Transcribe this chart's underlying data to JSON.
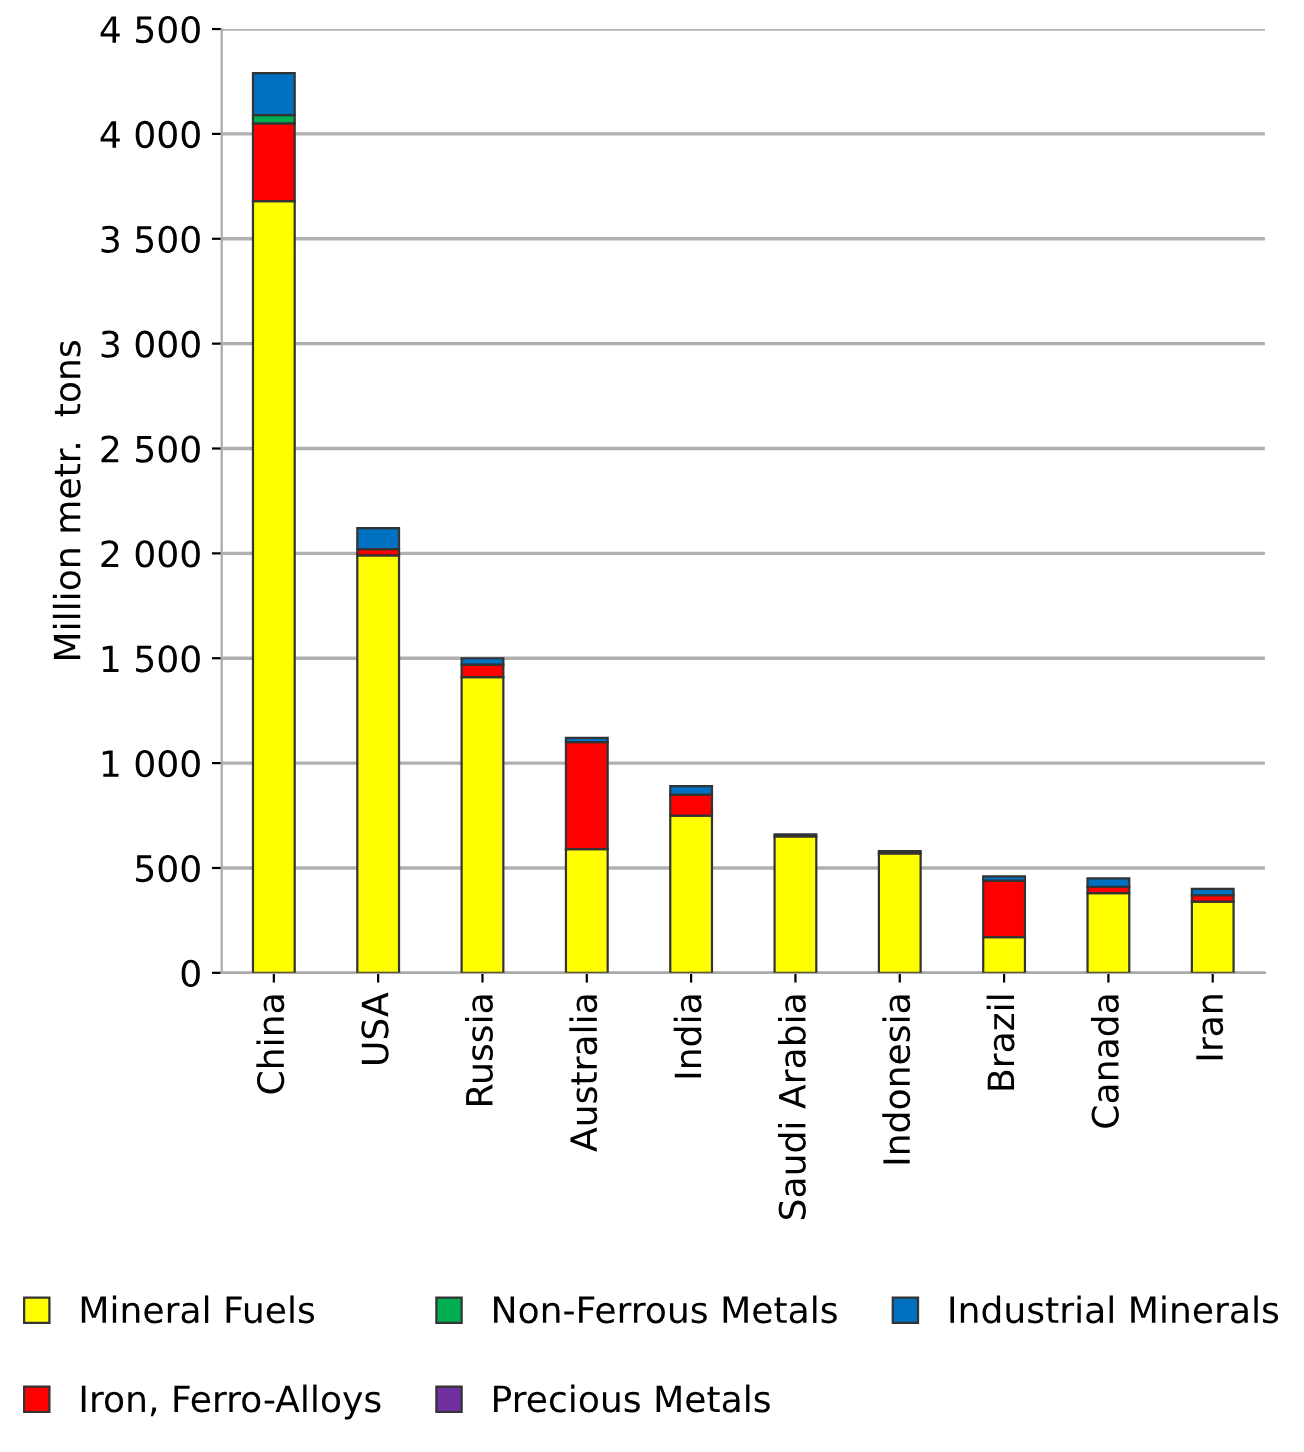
{
  "chart_data": {
    "type": "bar",
    "stacked": true,
    "ylabel": "Million metr.  tons",
    "categories": [
      "China",
      "USA",
      "Russia",
      "Australia",
      "India",
      "Saudi Arabia",
      "Indonesia",
      "Brazil",
      "Canada",
      "Iran"
    ],
    "series": [
      {
        "name": "Mineral Fuels",
        "color": "#ffff00",
        "values": [
          3680,
          1990,
          1410,
          590,
          750,
          650,
          570,
          170,
          380,
          340
        ]
      },
      {
        "name": "Iron, Ferro-Alloys",
        "color": "#ff0000",
        "values": [
          370,
          30,
          60,
          510,
          100,
          null,
          null,
          270,
          30,
          30
        ]
      },
      {
        "name": "Non-Ferrous Metals",
        "color": "#00b050",
        "values": [
          40,
          null,
          null,
          null,
          null,
          null,
          null,
          null,
          null,
          null
        ]
      },
      {
        "name": "Precious Metals",
        "color": "#7030a0",
        "values": [
          null,
          null,
          null,
          null,
          null,
          null,
          null,
          null,
          null,
          null
        ]
      },
      {
        "name": "Industrial Minerals",
        "color": "#0070c0",
        "values": [
          200,
          100,
          30,
          20,
          40,
          10,
          10,
          20,
          40,
          30
        ]
      }
    ],
    "ylim": [
      0,
      4500
    ],
    "yticks": [
      0,
      500,
      {
        "value": 1000,
        "label": "1 000"
      },
      {
        "value": 1500,
        "label": "1 500"
      },
      {
        "value": 2000,
        "label": "2 000"
      },
      {
        "value": 2500,
        "label": "2 500"
      },
      {
        "value": 3000,
        "label": "3 000"
      },
      {
        "value": 3500,
        "label": "3 500"
      },
      {
        "value": 4000,
        "label": "4 000"
      },
      {
        "value": 4500,
        "label": "4 500"
      }
    ],
    "grid": "y",
    "legend": "bottom"
  }
}
